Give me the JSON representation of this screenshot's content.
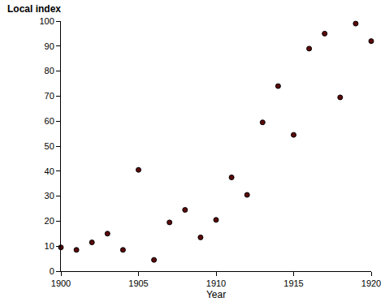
{
  "chart_data": {
    "type": "scatter",
    "x_label": "Year",
    "y_label": "Local index",
    "x": [
      1900,
      1901,
      1902,
      1903,
      1904,
      1905,
      1906,
      1907,
      1908,
      1909,
      1910,
      1911,
      1912,
      1913,
      1914,
      1915,
      1916,
      1917,
      1918,
      1919,
      1920
    ],
    "values": [
      9.5,
      8.5,
      11.5,
      15,
      8.5,
      40.5,
      4.5,
      19.5,
      24.5,
      13.5,
      20.5,
      37.5,
      30.5,
      59.5,
      74,
      54.5,
      89,
      95,
      69.5,
      99,
      92
    ],
    "color": "#5c0a0a",
    "marker": "circle",
    "xlim": [
      1900,
      1920
    ],
    "xticks": [
      1900,
      1905,
      1910,
      1915,
      1920
    ],
    "ylim": [
      0,
      100
    ],
    "yticks": [
      0,
      10,
      20,
      30,
      40,
      50,
      60,
      70,
      80,
      90,
      100
    ],
    "grid": false
  }
}
